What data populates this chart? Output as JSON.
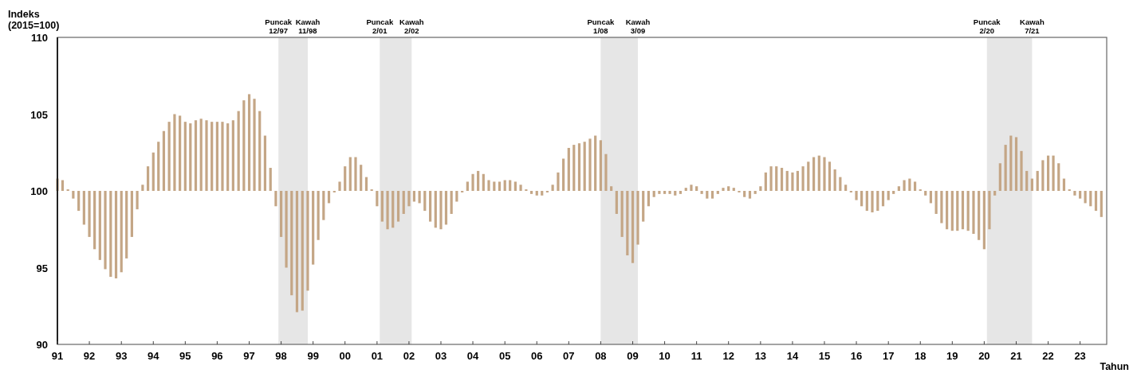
{
  "chart_data": {
    "type": "bar",
    "ylabel": "Indeks\n(2015=100)",
    "xlabel": "Tahun",
    "color": "#c4a686",
    "x": [
      "1991-01",
      "1991-03",
      "1991-05",
      "1991-07",
      "1991-09",
      "1991-11",
      "1992-01",
      "1992-03",
      "1992-05",
      "1992-07",
      "1992-09",
      "1992-11",
      "1993-01",
      "1993-03",
      "1993-05",
      "1993-07",
      "1993-09",
      "1993-11",
      "1994-01",
      "1994-03",
      "1994-05",
      "1994-07",
      "1994-09",
      "1994-11",
      "1995-01",
      "1995-03",
      "1995-05",
      "1995-07",
      "1995-09",
      "1995-11",
      "1996-01",
      "1996-03",
      "1996-05",
      "1996-07",
      "1996-09",
      "1996-11",
      "1997-01",
      "1997-03",
      "1997-05",
      "1997-07",
      "1997-09",
      "1997-11",
      "1998-01",
      "1998-03",
      "1998-05",
      "1998-07",
      "1998-09",
      "1998-11",
      "1999-01",
      "1999-03",
      "1999-05",
      "1999-07",
      "1999-09",
      "1999-11",
      "2000-01",
      "2000-03",
      "2000-05",
      "2000-07",
      "2000-09",
      "2000-11",
      "2001-01",
      "2001-03",
      "2001-05",
      "2001-07",
      "2001-09",
      "2001-11",
      "2002-01",
      "2002-03",
      "2002-05",
      "2002-07",
      "2002-09",
      "2002-11",
      "2003-01",
      "2003-03",
      "2003-05",
      "2003-07",
      "2003-09",
      "2003-11",
      "2004-01",
      "2004-03",
      "2004-05",
      "2004-07",
      "2004-09",
      "2004-11",
      "2005-01",
      "2005-03",
      "2005-05",
      "2005-07",
      "2005-09",
      "2005-11",
      "2006-01",
      "2006-03",
      "2006-05",
      "2006-07",
      "2006-09",
      "2006-11",
      "2007-01",
      "2007-03",
      "2007-05",
      "2007-07",
      "2007-09",
      "2007-11",
      "2008-01",
      "2008-03",
      "2008-05",
      "2008-07",
      "2008-09",
      "2008-11",
      "2009-01",
      "2009-03",
      "2009-05",
      "2009-07",
      "2009-09",
      "2009-11",
      "2010-01",
      "2010-03",
      "2010-05",
      "2010-07",
      "2010-09",
      "2010-11",
      "2011-01",
      "2011-03",
      "2011-05",
      "2011-07",
      "2011-09",
      "2011-11",
      "2012-01",
      "2012-03",
      "2012-05",
      "2012-07",
      "2012-09",
      "2012-11",
      "2013-01",
      "2013-03",
      "2013-05",
      "2013-07",
      "2013-09",
      "2013-11",
      "2014-01",
      "2014-03",
      "2014-05",
      "2014-07",
      "2014-09",
      "2014-11",
      "2015-01",
      "2015-03",
      "2015-05",
      "2015-07",
      "2015-09",
      "2015-11",
      "2016-01",
      "2016-03",
      "2016-05",
      "2016-07",
      "2016-09",
      "2016-11",
      "2017-01",
      "2017-03",
      "2017-05",
      "2017-07",
      "2017-09",
      "2017-11",
      "2018-01",
      "2018-03",
      "2018-05",
      "2018-07",
      "2018-09",
      "2018-11",
      "2019-01",
      "2019-03",
      "2019-05",
      "2019-07",
      "2019-09",
      "2019-11",
      "2020-01",
      "2020-03",
      "2020-05",
      "2020-07",
      "2020-09",
      "2020-11",
      "2021-01",
      "2021-03",
      "2021-05",
      "2021-07",
      "2021-09",
      "2021-11",
      "2022-01",
      "2022-03",
      "2022-05",
      "2022-07",
      "2022-09",
      "2022-11",
      "2023-01",
      "2023-03",
      "2023-05",
      "2023-07",
      "2023-09"
    ],
    "values": [
      0.8,
      0.7,
      0.1,
      -0.5,
      -1.3,
      -2.2,
      -3.0,
      -3.8,
      -4.5,
      -5.1,
      -5.6,
      -5.7,
      -5.3,
      -4.4,
      -3.0,
      -1.2,
      0.4,
      1.6,
      2.5,
      3.2,
      3.9,
      4.5,
      5.0,
      4.9,
      4.5,
      4.4,
      4.6,
      4.7,
      4.6,
      4.5,
      4.5,
      4.5,
      4.4,
      4.6,
      5.2,
      5.9,
      6.3,
      6.0,
      5.2,
      3.6,
      1.5,
      -1.0,
      -3.0,
      -5.0,
      -6.8,
      -7.9,
      -7.8,
      -6.5,
      -4.8,
      -3.2,
      -1.9,
      -0.8,
      -0.1,
      0.6,
      1.6,
      2.2,
      2.2,
      1.7,
      0.9,
      0.1,
      -1.0,
      -2.0,
      -2.5,
      -2.4,
      -2.0,
      -1.5,
      -1.0,
      -0.7,
      -0.8,
      -1.3,
      -2.0,
      -2.4,
      -2.5,
      -2.2,
      -1.5,
      -0.7,
      -0.1,
      0.6,
      1.1,
      1.3,
      1.1,
      0.7,
      0.6,
      0.6,
      0.7,
      0.7,
      0.6,
      0.4,
      0.1,
      -0.2,
      -0.3,
      -0.3,
      -0.1,
      0.4,
      1.2,
      2.1,
      2.8,
      3.0,
      3.1,
      3.2,
      3.4,
      3.6,
      3.3,
      2.4,
      0.3,
      -1.5,
      -3.0,
      -4.2,
      -4.7,
      -3.5,
      -2.0,
      -1.0,
      -0.4,
      -0.2,
      -0.2,
      -0.2,
      -0.3,
      -0.2,
      0.2,
      0.4,
      0.3,
      -0.2,
      -0.5,
      -0.5,
      -0.2,
      0.2,
      0.3,
      0.2,
      -0.1,
      -0.4,
      -0.5,
      -0.2,
      0.3,
      1.2,
      1.6,
      1.6,
      1.5,
      1.3,
      1.2,
      1.3,
      1.6,
      1.9,
      2.2,
      2.3,
      2.2,
      1.9,
      1.4,
      0.9,
      0.4,
      -0.1,
      -0.6,
      -1.0,
      -1.3,
      -1.4,
      -1.3,
      -1.0,
      -0.6,
      -0.2,
      0.3,
      0.7,
      0.8,
      0.6,
      0.1,
      -0.3,
      -0.8,
      -1.5,
      -2.1,
      -2.5,
      -2.6,
      -2.6,
      -2.5,
      -2.6,
      -2.8,
      -3.2,
      -3.8,
      -2.5,
      -0.3,
      1.8,
      3.0,
      3.6,
      3.5,
      2.6,
      1.3,
      0.8,
      1.3,
      2.0,
      2.3,
      2.3,
      1.8,
      0.8,
      0.1,
      -0.3,
      -0.5,
      -0.8,
      -1.0,
      -1.3,
      -1.7
    ],
    "base": [
      100,
      100,
      100,
      100,
      100,
      100,
      100,
      100,
      100,
      100,
      100,
      100,
      100,
      100,
      100,
      100,
      100,
      100,
      100,
      100,
      100,
      100,
      100,
      100,
      100,
      100,
      100,
      100,
      100,
      100,
      100,
      100,
      100,
      100,
      100,
      100,
      100,
      100,
      100,
      100,
      100,
      100,
      100,
      100,
      100,
      100,
      100,
      100,
      100,
      100,
      100,
      100,
      100,
      100,
      100,
      100,
      100,
      100,
      100,
      100,
      100,
      100,
      100,
      100,
      100,
      100,
      100,
      100,
      100,
      100,
      100,
      100,
      100,
      100,
      100,
      100,
      100,
      100,
      100,
      100,
      100,
      100,
      100,
      100,
      100,
      100,
      100,
      100,
      100,
      100,
      100,
      100,
      100,
      100,
      100,
      100,
      100,
      100,
      100,
      100,
      100,
      100,
      100,
      100,
      100,
      100,
      100,
      100,
      100,
      100,
      100,
      100,
      100,
      100,
      100,
      100,
      100,
      100,
      100,
      100,
      100,
      100,
      100,
      100,
      100,
      100,
      100,
      100,
      100,
      100,
      100,
      100,
      100,
      100,
      100,
      100,
      100,
      100,
      100,
      100,
      100,
      100,
      100,
      100,
      100,
      100,
      100,
      100,
      100,
      100,
      100,
      100,
      100,
      100,
      100,
      100,
      100,
      100,
      100,
      100,
      100,
      100,
      100,
      100,
      100,
      100,
      100,
      100,
      100,
      100,
      100,
      100,
      100,
      100,
      100,
      100,
      100,
      100,
      100,
      100,
      100,
      100,
      100,
      100,
      100,
      100,
      100,
      100,
      100,
      100,
      100,
      100,
      100,
      100,
      100,
      100,
      100
    ],
    "xlim": [
      "1991-01",
      "2023-11"
    ],
    "xticks": [
      {
        "value": "1991-01",
        "label": "91"
      },
      {
        "value": "1992-01",
        "label": "92"
      },
      {
        "value": "1993-01",
        "label": "93"
      },
      {
        "value": "1994-01",
        "label": "94"
      },
      {
        "value": "1995-01",
        "label": "95"
      },
      {
        "value": "1996-01",
        "label": "96"
      },
      {
        "value": "1997-01",
        "label": "97"
      },
      {
        "value": "1998-01",
        "label": "98"
      },
      {
        "value": "1999-01",
        "label": "99"
      },
      {
        "value": "2000-01",
        "label": "00"
      },
      {
        "value": "2001-01",
        "label": "01"
      },
      {
        "value": "2002-01",
        "label": "02"
      },
      {
        "value": "2003-01",
        "label": "03"
      },
      {
        "value": "2004-01",
        "label": "04"
      },
      {
        "value": "2005-01",
        "label": "05"
      },
      {
        "value": "2006-01",
        "label": "06"
      },
      {
        "value": "2007-01",
        "label": "07"
      },
      {
        "value": "2008-01",
        "label": "08"
      },
      {
        "value": "2009-01",
        "label": "09"
      },
      {
        "value": "2010-01",
        "label": "10"
      },
      {
        "value": "2011-01",
        "label": "11"
      },
      {
        "value": "2012-01",
        "label": "12"
      },
      {
        "value": "2013-01",
        "label": "13"
      },
      {
        "value": "2014-01",
        "label": "14"
      },
      {
        "value": "2015-01",
        "label": "15"
      },
      {
        "value": "2016-01",
        "label": "16"
      },
      {
        "value": "2017-01",
        "label": "17"
      },
      {
        "value": "2018-01",
        "label": "18"
      },
      {
        "value": "2019-01",
        "label": "19"
      },
      {
        "value": "2020-01",
        "label": "20"
      },
      {
        "value": "2021-01",
        "label": "21"
      },
      {
        "value": "2022-01",
        "label": "22"
      },
      {
        "value": "2023-01",
        "label": "23"
      }
    ],
    "ylim": [
      90,
      110
    ],
    "yticks": [
      90,
      95,
      100,
      105,
      110
    ],
    "bands": [
      {
        "axis": "x",
        "from": "1997-12",
        "to": "1998-11",
        "color": "#e6e6e6"
      },
      {
        "axis": "x",
        "from": "2001-02",
        "to": "2002-02",
        "color": "#e6e6e6"
      },
      {
        "axis": "x",
        "from": "2008-01",
        "to": "2009-03",
        "color": "#e6e6e6"
      },
      {
        "axis": "x",
        "from": "2020-02",
        "to": "2021-07",
        "color": "#e6e6e6"
      }
    ],
    "annotations": [
      {
        "text": "Puncak\n12/97",
        "x": "1997-12",
        "y": 110
      },
      {
        "text": "Kawah\n11/98",
        "x": "1998-11",
        "y": 110
      },
      {
        "text": "Puncak\n2/01",
        "x": "2001-02",
        "y": 110
      },
      {
        "text": "Kawah\n2/02",
        "x": "2002-02",
        "y": 110
      },
      {
        "text": "Puncak\n1/08",
        "x": "2008-01",
        "y": 110
      },
      {
        "text": "Kawah\n3/09",
        "x": "2009-03",
        "y": 110
      },
      {
        "text": "Puncak\n2/20",
        "x": "2020-02",
        "y": 110
      },
      {
        "text": "Kawah\n7/21",
        "x": "2021-07",
        "y": 110
      }
    ]
  }
}
